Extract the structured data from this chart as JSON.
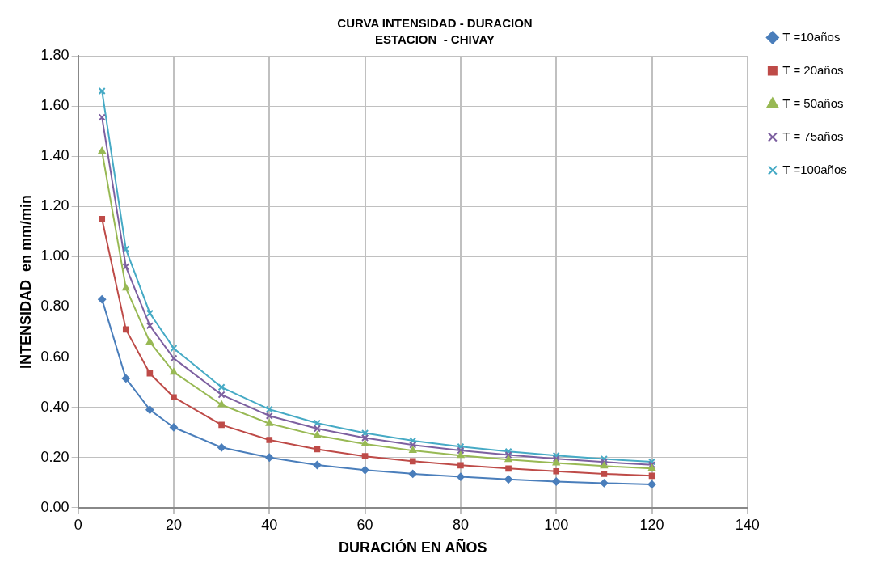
{
  "chart_data": {
    "type": "line",
    "title": "CURVA INTENSIDAD - DURACION",
    "subtitle": "ESTACION  - CHIVAY",
    "xlabel": "DURACIÓN EN AÑOS",
    "ylabel": "INTENSIDAD  en mm/min",
    "x": [
      5,
      10,
      15,
      20,
      30,
      40,
      50,
      60,
      70,
      80,
      90,
      100,
      110,
      120
    ],
    "xlim": [
      0,
      140
    ],
    "xticks": [
      0,
      20,
      40,
      60,
      80,
      100,
      120,
      140
    ],
    "ylim": [
      0,
      1.8
    ],
    "yticks": [
      {
        "value": 0,
        "label": "0.00"
      },
      {
        "value": 0.2,
        "label": "0.20"
      },
      {
        "value": 0.4,
        "label": "0.40"
      },
      {
        "value": 0.6,
        "label": "0.60"
      },
      {
        "value": 0.8,
        "label": "0.80"
      },
      {
        "value": 1,
        "label": "1.00"
      },
      {
        "value": 1.2,
        "label": "1.20"
      },
      {
        "value": 1.4,
        "label": "1.40"
      },
      {
        "value": 1.6,
        "label": "1.60"
      },
      {
        "value": 1.8,
        "label": "1.80"
      }
    ],
    "grid": true,
    "legend": "right",
    "line_style": "solid",
    "series": [
      {
        "name": "T =10años",
        "color": "#4a7ebb",
        "marker": "diamond",
        "values": [
          0.83,
          0.515,
          0.39,
          0.32,
          0.24,
          0.2,
          0.17,
          0.15,
          0.135,
          0.123,
          0.113,
          0.104,
          0.098,
          0.093
        ]
      },
      {
        "name": "T = 20años",
        "color": "#be4b48",
        "marker": "square",
        "values": [
          1.15,
          0.71,
          0.535,
          0.44,
          0.33,
          0.27,
          0.233,
          0.205,
          0.185,
          0.169,
          0.156,
          0.145,
          0.135,
          0.127
        ]
      },
      {
        "name": "T = 50años",
        "color": "#98b954",
        "marker": "triangle",
        "values": [
          1.42,
          0.875,
          0.66,
          0.54,
          0.41,
          0.335,
          0.288,
          0.254,
          0.228,
          0.208,
          0.192,
          0.178,
          0.166,
          0.156
        ]
      },
      {
        "name": "T = 75años",
        "color": "#7d60a0",
        "marker": "cross",
        "values": [
          1.555,
          0.96,
          0.725,
          0.595,
          0.45,
          0.366,
          0.315,
          0.278,
          0.25,
          0.228,
          0.21,
          0.195,
          0.182,
          0.171
        ]
      },
      {
        "name": "T =100años",
        "color": "#46aac5",
        "marker": "cross",
        "values": [
          1.66,
          1.03,
          0.775,
          0.635,
          0.48,
          0.392,
          0.337,
          0.297,
          0.267,
          0.243,
          0.224,
          0.208,
          0.194,
          0.183
        ]
      }
    ]
  }
}
